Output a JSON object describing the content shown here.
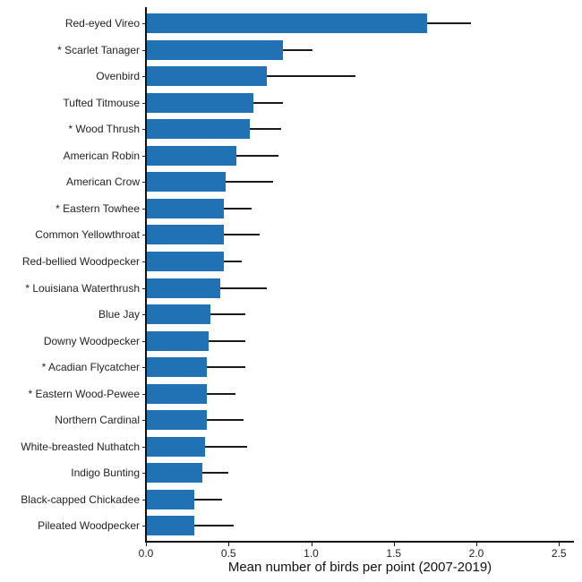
{
  "chart_data": {
    "type": "bar",
    "orientation": "horizontal",
    "title": "",
    "xlabel": "Mean number of birds per point (2007-2019)",
    "ylabel": "",
    "xlim": [
      0,
      2.6
    ],
    "xticks": [
      "0.0",
      "0.5",
      "1.0",
      "1.5",
      "2.0",
      "2.5"
    ],
    "grid": false,
    "legend": null,
    "bar_color": "#2171b5",
    "error_bars": "upper whisker only",
    "categories": [
      "Red-eyed Vireo",
      "* Scarlet Tanager",
      "Ovenbird",
      "Tufted Titmouse",
      "* Wood Thrush",
      "American Robin",
      "American Crow",
      "* Eastern Towhee",
      "Common Yellowthroat",
      "Red-bellied Woodpecker",
      "* Louisiana Waterthrush",
      "Blue Jay",
      "Downy Woodpecker",
      "* Acadian Flycatcher",
      "* Eastern Wood-Pewee",
      "Northern Cardinal",
      "White-breasted Nuthatch",
      "Indigo Bunting",
      "Black-capped Chickadee",
      "Pileated Woodpecker"
    ],
    "values": [
      1.7,
      0.83,
      0.73,
      0.65,
      0.63,
      0.55,
      0.48,
      0.47,
      0.47,
      0.47,
      0.45,
      0.39,
      0.38,
      0.37,
      0.37,
      0.37,
      0.36,
      0.34,
      0.29,
      0.29
    ],
    "error_upper": [
      1.97,
      1.01,
      1.27,
      0.83,
      0.82,
      0.8,
      0.77,
      0.64,
      0.69,
      0.58,
      0.73,
      0.6,
      0.6,
      0.6,
      0.54,
      0.59,
      0.61,
      0.5,
      0.46,
      0.53
    ]
  }
}
